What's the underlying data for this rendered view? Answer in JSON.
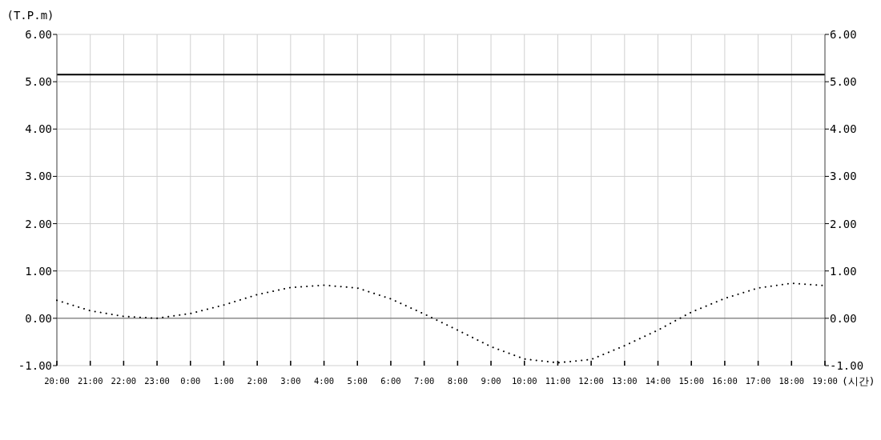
{
  "chart_data": {
    "type": "line",
    "xlabel": "(시간)",
    "ylabel": "(T.P.m)",
    "xlim": [
      "2000-01-01T20:00",
      "2000-01-02T19:00"
    ],
    "xticks": [
      {
        "value": "2000-01-01T20:00",
        "label": "20:00"
      },
      {
        "value": "2000-01-01T21:00",
        "label": "21:00"
      },
      {
        "value": "2000-01-01T22:00",
        "label": "22:00"
      },
      {
        "value": "2000-01-01T23:00",
        "label": "23:00"
      },
      {
        "value": "2000-01-02T00:00",
        "label": "0:00"
      },
      {
        "value": "2000-01-02T01:00",
        "label": "1:00"
      },
      {
        "value": "2000-01-02T02:00",
        "label": "2:00"
      },
      {
        "value": "2000-01-02T03:00",
        "label": "3:00"
      },
      {
        "value": "2000-01-02T04:00",
        "label": "4:00"
      },
      {
        "value": "2000-01-02T05:00",
        "label": "5:00"
      },
      {
        "value": "2000-01-02T06:00",
        "label": "6:00"
      },
      {
        "value": "2000-01-02T07:00",
        "label": "7:00"
      },
      {
        "value": "2000-01-02T08:00",
        "label": "8:00"
      },
      {
        "value": "2000-01-02T09:00",
        "label": "9:00"
      },
      {
        "value": "2000-01-02T10:00",
        "label": "10:00"
      },
      {
        "value": "2000-01-02T11:00",
        "label": "11:00"
      },
      {
        "value": "2000-01-02T12:00",
        "label": "12:00"
      },
      {
        "value": "2000-01-02T13:00",
        "label": "13:00"
      },
      {
        "value": "2000-01-02T14:00",
        "label": "14:00"
      },
      {
        "value": "2000-01-02T15:00",
        "label": "15:00"
      },
      {
        "value": "2000-01-02T16:00",
        "label": "16:00"
      },
      {
        "value": "2000-01-02T17:00",
        "label": "17:00"
      },
      {
        "value": "2000-01-02T18:00",
        "label": "18:00"
      },
      {
        "value": "2000-01-02T19:00",
        "label": "19:00"
      }
    ],
    "ylim": [
      -1,
      6
    ],
    "yticks": [
      {
        "value": -1,
        "label": "-1.00"
      },
      {
        "value": 0,
        "label": "0.00"
      },
      {
        "value": 1,
        "label": "1.00"
      },
      {
        "value": 2,
        "label": "2.00"
      },
      {
        "value": 3,
        "label": "3.00"
      },
      {
        "value": 4,
        "label": "4.00"
      },
      {
        "value": 5,
        "label": "5.00"
      },
      {
        "value": 6,
        "label": "6.00"
      }
    ],
    "y2lim": [
      -1,
      6
    ],
    "y2ticks": [
      {
        "value": -1,
        "label": "-1.00"
      },
      {
        "value": 0,
        "label": "0.00"
      },
      {
        "value": 1,
        "label": "1.00"
      },
      {
        "value": 2,
        "label": "2.00"
      },
      {
        "value": 3,
        "label": "3.00"
      },
      {
        "value": 4,
        "label": "4.00"
      },
      {
        "value": 5,
        "label": "5.00"
      },
      {
        "value": 6,
        "label": "6.00"
      }
    ],
    "x": [
      "2000-01-01T20:00",
      "2000-01-01T21:00",
      "2000-01-01T22:00",
      "2000-01-01T23:00",
      "2000-01-02T00:00",
      "2000-01-02T01:00",
      "2000-01-02T02:00",
      "2000-01-02T03:00",
      "2000-01-02T04:00",
      "2000-01-02T05:00",
      "2000-01-02T06:00",
      "2000-01-02T07:00",
      "2000-01-02T08:00",
      "2000-01-02T09:00",
      "2000-01-02T10:00",
      "2000-01-02T11:00",
      "2000-01-02T12:00",
      "2000-01-02T13:00",
      "2000-01-02T14:00",
      "2000-01-02T15:00",
      "2000-01-02T16:00",
      "2000-01-02T17:00",
      "2000-01-02T18:00",
      "2000-01-02T19:00"
    ],
    "series": [
      {
        "color": "#000000",
        "line_style": "dotted",
        "values": [
          0.38,
          0.16,
          0.04,
          0.0,
          0.1,
          0.28,
          0.5,
          0.65,
          0.7,
          0.64,
          0.41,
          0.09,
          -0.25,
          -0.6,
          -0.86,
          -0.94,
          -0.87,
          -0.58,
          -0.25,
          0.13,
          0.42,
          0.64,
          0.74,
          0.69
        ]
      }
    ],
    "ref_lines": [
      {
        "axis": "y",
        "value": 5.15,
        "color": "#000000",
        "line_style": "solid"
      },
      {
        "axis": "y",
        "value": 0,
        "color": "#666666",
        "line_style": "solid"
      }
    ],
    "grid": true,
    "marker": "none"
  }
}
